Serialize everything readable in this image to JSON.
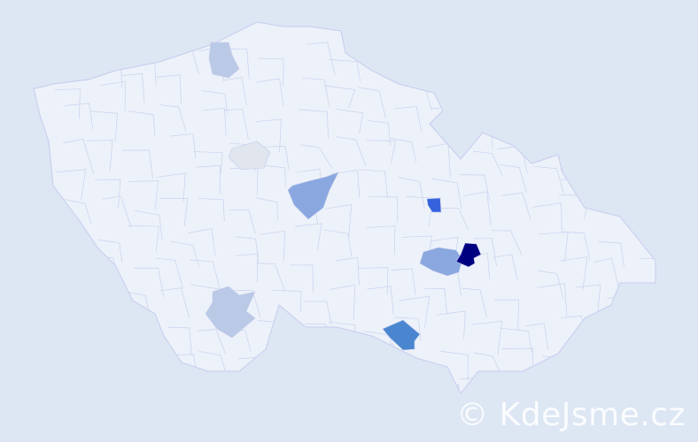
{
  "watermark": "© KdeJsme.cz",
  "colors": {
    "background": "#dde6f3",
    "land": "#edf1f9",
    "border": "#c5cdee",
    "level_1": "#e0e5ee",
    "level_2": "#bac9e6",
    "level_3": "#8aa8df",
    "level_4": "#4a86d0",
    "level_5": "#3562dc",
    "level_6": "#000080"
  },
  "highlighted_regions": [
    {
      "name": "region-north",
      "level": 2
    },
    {
      "name": "region-central-west",
      "level": 1
    },
    {
      "name": "region-central",
      "level": 3
    },
    {
      "name": "region-south-west",
      "level": 2
    },
    {
      "name": "region-east-small",
      "level": 5
    },
    {
      "name": "region-moravia-mid",
      "level": 3
    },
    {
      "name": "region-moravia-dark",
      "level": 6
    },
    {
      "name": "region-south",
      "level": 4
    }
  ]
}
